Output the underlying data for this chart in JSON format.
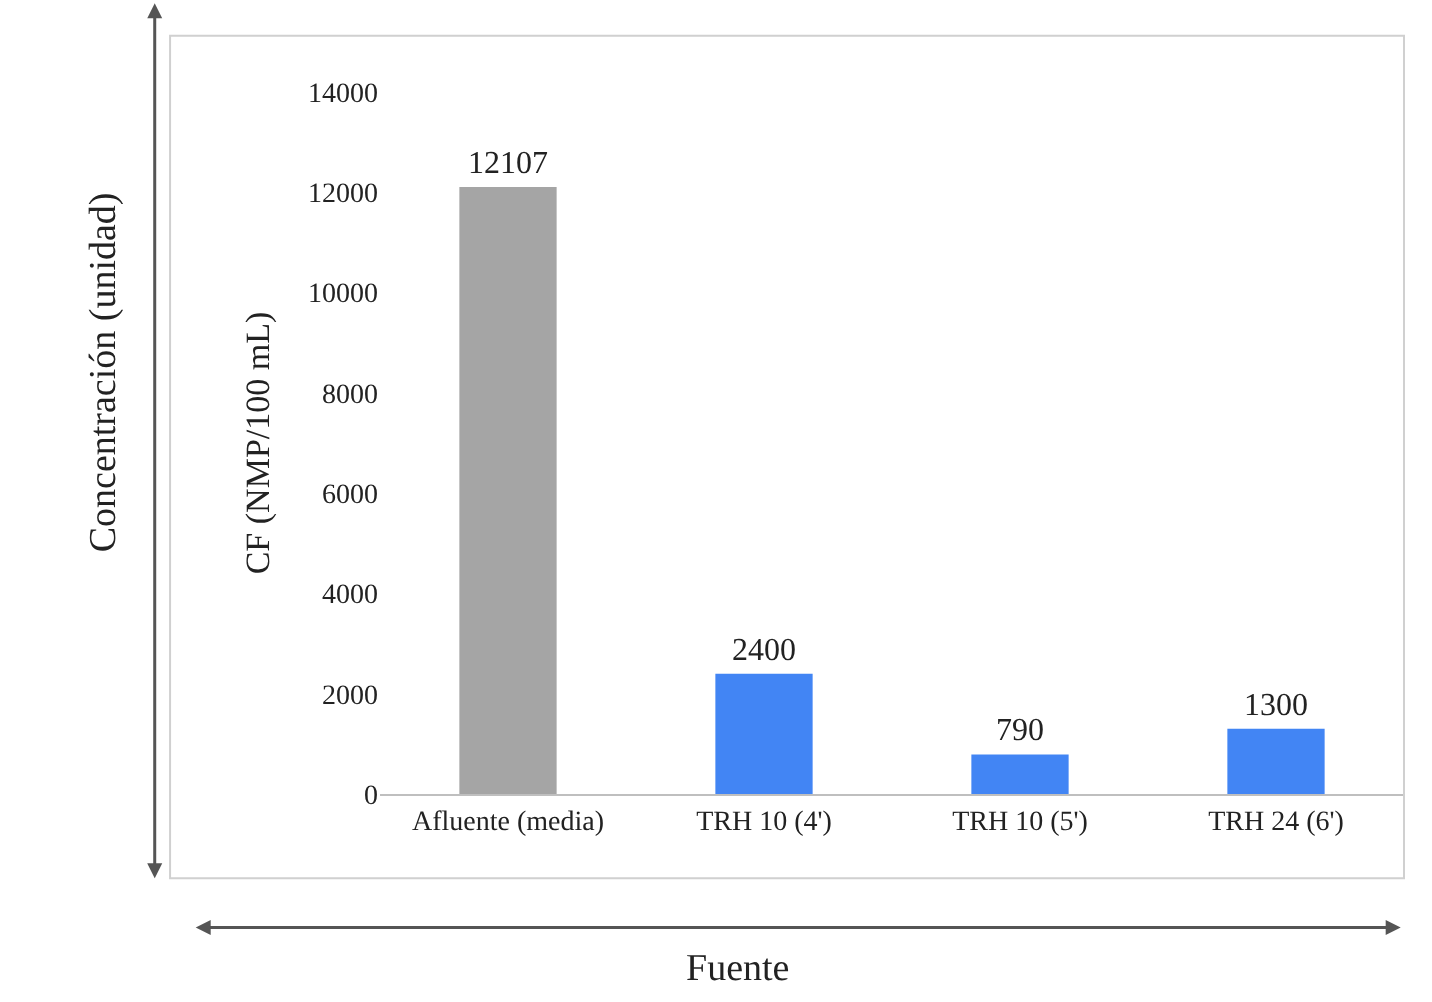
{
  "chart_data": {
    "type": "bar",
    "categories": [
      "Afluente (media)",
      "TRH 10 (4')",
      "TRH 10 (5')",
      "TRH 24 (6')"
    ],
    "values": [
      12107,
      2400,
      790,
      1300
    ],
    "colors": [
      "#a5a5a5",
      "#4285f4",
      "#4285f4",
      "#4285f4"
    ],
    "ylabel": "CF (NMP/100 mL)",
    "ylim": [
      0,
      14000
    ],
    "yticks": [
      0,
      2000,
      4000,
      6000,
      8000,
      10000,
      12000,
      14000
    ],
    "data_labels": true,
    "annotations": [
      "Concentración (unidad)",
      "Fuente"
    ]
  }
}
